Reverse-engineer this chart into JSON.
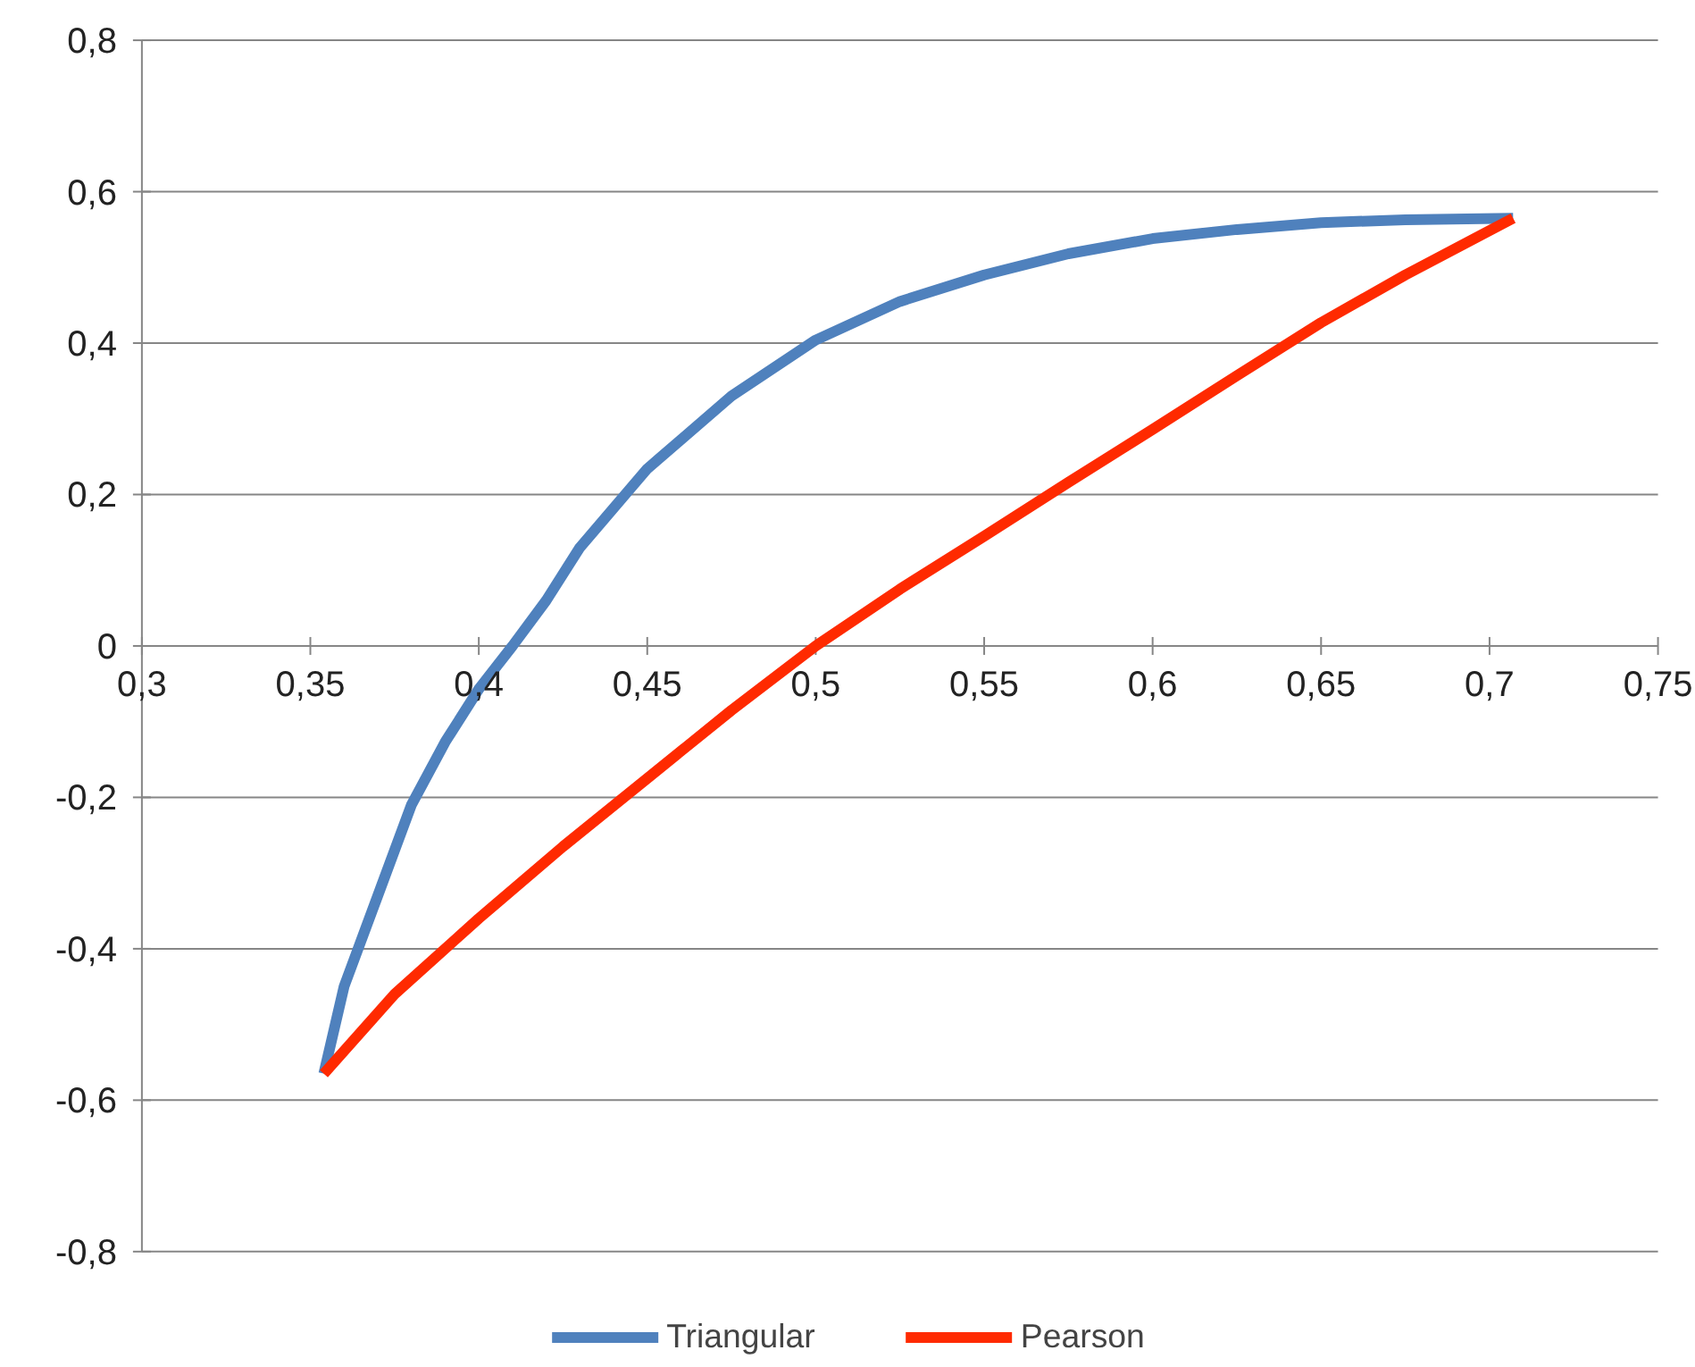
{
  "chart_data": {
    "type": "line",
    "xlim": [
      0.3,
      0.75
    ],
    "ylim": [
      -0.8,
      0.8
    ],
    "xticks": [
      {
        "value": 0.3,
        "label": "0,3"
      },
      {
        "value": 0.35,
        "label": "0,35"
      },
      {
        "value": 0.4,
        "label": "0,4"
      },
      {
        "value": 0.45,
        "label": "0,45"
      },
      {
        "value": 0.5,
        "label": "0,5"
      },
      {
        "value": 0.55,
        "label": "0,55"
      },
      {
        "value": 0.6,
        "label": "0,6"
      },
      {
        "value": 0.65,
        "label": "0,65"
      },
      {
        "value": 0.7,
        "label": "0,7"
      },
      {
        "value": 0.75,
        "label": "0,75"
      }
    ],
    "yticks": [
      {
        "value": -0.8,
        "label": "-0,8"
      },
      {
        "value": -0.6,
        "label": "-0,6"
      },
      {
        "value": -0.4,
        "label": "-0,4"
      },
      {
        "value": -0.2,
        "label": "-0,2"
      },
      0,
      {
        "value": 0.2,
        "label": "0,2"
      },
      {
        "value": 0.4,
        "label": "0,4"
      },
      {
        "value": 0.6,
        "label": "0,6"
      },
      {
        "value": 0.8,
        "label": "0,8"
      }
    ],
    "grid": "y",
    "legend": "bottom",
    "marker": "none",
    "line_style": "solid",
    "series": [
      {
        "name": "Triangular",
        "color": "#4f81bd",
        "x": [
          0.354,
          0.36,
          0.37,
          0.38,
          0.39,
          0.4,
          0.41,
          0.42,
          0.43,
          0.45,
          0.475,
          0.5,
          0.525,
          0.55,
          0.575,
          0.6,
          0.625,
          0.65,
          0.675,
          0.707
        ],
        "values": [
          -0.565,
          -0.45,
          -0.33,
          -0.21,
          -0.127,
          -0.057,
          0.0,
          0.06,
          0.13,
          0.234,
          0.33,
          0.404,
          0.455,
          0.49,
          0.518,
          0.538,
          0.55,
          0.559,
          0.563,
          0.565
        ]
      },
      {
        "name": "Pearson",
        "color": "#ff2a00",
        "x": [
          0.354,
          0.375,
          0.4,
          0.425,
          0.45,
          0.475,
          0.5,
          0.525,
          0.55,
          0.575,
          0.6,
          0.625,
          0.65,
          0.675,
          0.707
        ],
        "values": [
          -0.565,
          -0.46,
          -0.36,
          -0.265,
          -0.175,
          -0.085,
          0.0,
          0.075,
          0.145,
          0.216,
          0.286,
          0.357,
          0.427,
          0.49,
          0.565
        ]
      }
    ]
  }
}
